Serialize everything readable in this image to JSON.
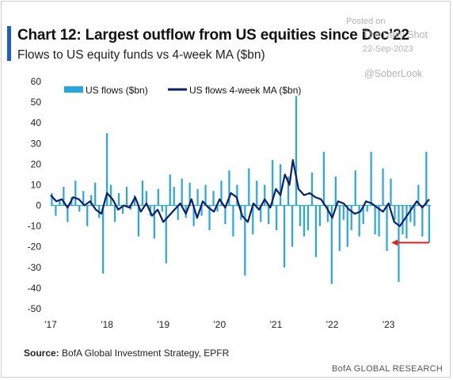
{
  "header": {
    "title": "Chart 12: Largest outflow from US equities since Dec’22",
    "subtitle": "Flows to US equity funds vs 4-week MA ($bn)"
  },
  "watermark": {
    "posted_on": "Posted on",
    "site": "The Daily Shot",
    "date": "22-Sep-2023",
    "handle": "@SoberLook"
  },
  "footer": {
    "source_label": "Source:",
    "source_text": "BofA Global Investment Strategy, EPFR",
    "brand": "BofA GLOBAL RESEARCH"
  },
  "colors": {
    "bars": "#27a7e0",
    "ma_line": "#0b1e6e",
    "arrow": "#e0201b",
    "accent": "#1f5fc2"
  },
  "chart_data": {
    "type": "bar",
    "title": "Chart 12: Largest outflow from US equities since Dec’22",
    "subtitle": "Flows to US equity funds vs 4-week MA ($bn)",
    "xlabel": "",
    "ylabel": "",
    "x_range": [
      2017.0,
      2023.75
    ],
    "ylim": [
      -50,
      60
    ],
    "yticks": [
      60,
      50,
      40,
      30,
      20,
      10,
      0,
      -10,
      -20,
      -30,
      -40,
      -50
    ],
    "xticks": [
      {
        "label": "'17",
        "x": 2017.0
      },
      {
        "label": "'18",
        "x": 2018.0
      },
      {
        "label": "'19",
        "x": 2019.0
      },
      {
        "label": "'20",
        "x": 2020.0
      },
      {
        "label": "'21",
        "x": 2021.0
      },
      {
        "label": "'22",
        "x": 2022.0
      },
      {
        "label": "'23",
        "x": 2023.0
      }
    ],
    "grid": false,
    "legend_position": "top-left",
    "series": [
      {
        "name": "US flows ($bn)",
        "type": "bar",
        "x": [
          2017.02,
          2017.09,
          2017.16,
          2017.23,
          2017.3,
          2017.37,
          2017.44,
          2017.51,
          2017.58,
          2017.65,
          2017.72,
          2017.79,
          2017.86,
          2017.93,
          2018.0,
          2018.07,
          2018.14,
          2018.21,
          2018.28,
          2018.35,
          2018.42,
          2018.49,
          2018.56,
          2018.63,
          2018.7,
          2018.77,
          2018.84,
          2018.91,
          2018.98,
          2019.05,
          2019.12,
          2019.19,
          2019.26,
          2019.33,
          2019.4,
          2019.47,
          2019.54,
          2019.61,
          2019.68,
          2019.75,
          2019.82,
          2019.89,
          2019.96,
          2020.03,
          2020.1,
          2020.17,
          2020.24,
          2020.31,
          2020.38,
          2020.45,
          2020.52,
          2020.59,
          2020.66,
          2020.73,
          2020.8,
          2020.87,
          2020.94,
          2021.01,
          2021.08,
          2021.15,
          2021.22,
          2021.29,
          2021.36,
          2021.43,
          2021.5,
          2021.57,
          2021.64,
          2021.71,
          2021.78,
          2021.85,
          2021.92,
          2021.99,
          2022.06,
          2022.13,
          2022.2,
          2022.27,
          2022.34,
          2022.41,
          2022.48,
          2022.55,
          2022.62,
          2022.69,
          2022.76,
          2022.83,
          2022.9,
          2022.97,
          2023.04,
          2023.11,
          2023.18,
          2023.25,
          2023.32,
          2023.39,
          2023.46,
          2023.53,
          2023.6,
          2023.67,
          2023.72
        ],
        "values": [
          6,
          -5,
          3,
          9,
          -8,
          4,
          12,
          -3,
          7,
          -10,
          5,
          11,
          -6,
          -33,
          35,
          10,
          -8,
          6,
          -4,
          9,
          -2,
          5,
          -15,
          12,
          7,
          -5,
          -16,
          8,
          -3,
          -28,
          15,
          9,
          -7,
          13,
          -6,
          11,
          -10,
          8,
          -5,
          10,
          -12,
          7,
          -3,
          12,
          -9,
          17,
          -15,
          10,
          -7,
          -34,
          18,
          -14,
          12,
          -8,
          10,
          -9,
          22,
          -12,
          20,
          -30,
          14,
          -20,
          53,
          -10,
          -15,
          -12,
          16,
          -25,
          -10,
          26,
          -8,
          -38,
          14,
          -22,
          -7,
          -20,
          -12,
          17,
          -15,
          -9,
          -3,
          26,
          -14,
          -15,
          18,
          -22,
          13,
          -7,
          -37,
          -14,
          -16,
          -8,
          -10,
          10,
          -15,
          26,
          -18
        ]
      },
      {
        "name": "US flows 4-week MA ($bn)",
        "type": "line",
        "x": [
          2017.0,
          2017.1,
          2017.2,
          2017.3,
          2017.4,
          2017.5,
          2017.6,
          2017.7,
          2017.8,
          2017.9,
          2018.0,
          2018.1,
          2018.2,
          2018.3,
          2018.4,
          2018.5,
          2018.6,
          2018.7,
          2018.8,
          2018.9,
          2019.0,
          2019.1,
          2019.2,
          2019.3,
          2019.4,
          2019.5,
          2019.6,
          2019.7,
          2019.8,
          2019.9,
          2020.0,
          2020.1,
          2020.2,
          2020.3,
          2020.4,
          2020.5,
          2020.6,
          2020.7,
          2020.8,
          2020.9,
          2021.0,
          2021.08,
          2021.16,
          2021.24,
          2021.3,
          2021.4,
          2021.5,
          2021.6,
          2021.7,
          2021.8,
          2021.9,
          2022.0,
          2022.1,
          2022.2,
          2022.3,
          2022.4,
          2022.5,
          2022.6,
          2022.7,
          2022.8,
          2022.9,
          2023.0,
          2023.1,
          2023.2,
          2023.3,
          2023.4,
          2023.5,
          2023.6,
          2023.72
        ],
        "values": [
          5,
          2,
          3,
          -1,
          4,
          3,
          0,
          2,
          -2,
          -4,
          6,
          3,
          -2,
          0,
          -1,
          4,
          -3,
          1,
          -5,
          -2,
          -8,
          -5,
          -2,
          1,
          -4,
          3,
          -6,
          2,
          -1,
          -3,
          3,
          -1,
          6,
          4,
          -5,
          -8,
          1,
          -2,
          3,
          -1,
          8,
          5,
          15,
          10,
          22,
          8,
          5,
          6,
          4,
          3,
          -1,
          -6,
          2,
          1,
          -2,
          -4,
          -3,
          2,
          1,
          -1,
          -3,
          1,
          -8,
          -10,
          -6,
          -2,
          2,
          -1,
          3
        ]
      }
    ],
    "annotations": [
      {
        "type": "arrow",
        "color": "red",
        "x_from": 2023.72,
        "x_to": 2023.05,
        "y": -18
      }
    ]
  }
}
